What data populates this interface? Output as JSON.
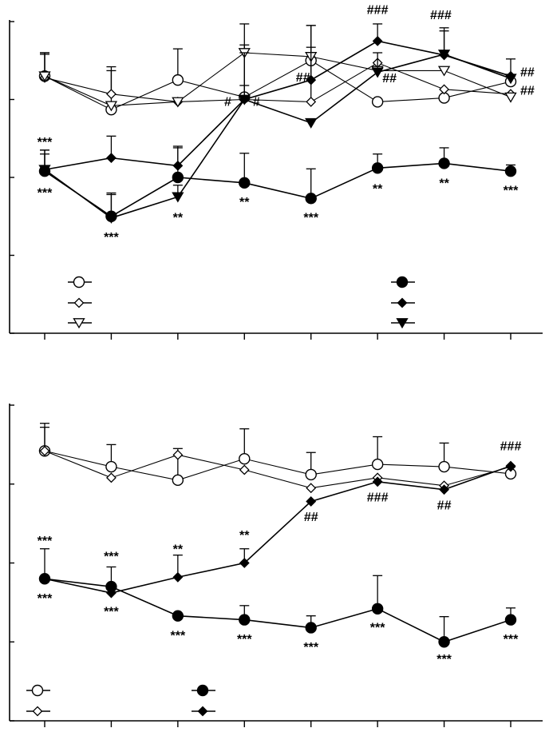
{
  "chart_data": [
    {
      "type": "line",
      "x": [
        1,
        2,
        3,
        4,
        5,
        6,
        7,
        8
      ],
      "ylim": [
        0,
        4
      ],
      "yticks": [
        0,
        1,
        2,
        3,
        4
      ],
      "title": "",
      "xlabel": "",
      "ylabel": "",
      "legend_placement": "bottom",
      "series": [
        {
          "marker": "circle-open",
          "values": [
            3.3,
            2.87,
            3.25,
            3.03,
            3.5,
            2.97,
            3.02,
            3.23
          ],
          "errors": [
            0.3,
            0.55,
            0.4,
            0.05,
            0.45,
            0.05,
            0.05,
            0.05
          ]
        },
        {
          "marker": "diamond-open",
          "values": [
            3.28,
            3.07,
            2.97,
            3.0,
            2.97,
            3.47,
            3.13,
            3.07
          ],
          "errors": [
            0.3,
            0.3,
            0.05,
            0.7,
            0.7,
            0.05,
            0.05,
            0.05
          ]
        },
        {
          "marker": "triangle-open",
          "values": [
            3.3,
            2.92,
            2.97,
            3.6,
            3.55,
            3.37,
            3.37,
            3.03
          ],
          "errors": [
            0.3,
            0.05,
            0.05,
            0.37,
            0.05,
            0.05,
            0.05,
            0.05
          ]
        },
        {
          "marker": "circle-filled",
          "values": [
            2.08,
            1.5,
            2.0,
            1.93,
            1.73,
            2.12,
            2.18,
            2.08
          ],
          "errors": [
            0.22,
            0.3,
            0.4,
            0.38,
            0.38,
            0.18,
            0.2,
            0.08
          ]
        },
        {
          "marker": "diamond-filled",
          "values": [
            2.1,
            2.25,
            2.15,
            3.0,
            3.25,
            3.75,
            3.57,
            3.3
          ],
          "errors": [
            0.25,
            0.28,
            0.23,
            0.18,
            0.7,
            0.22,
            0.35,
            0.22
          ]
        },
        {
          "marker": "triangle-filled",
          "values": [
            2.1,
            1.48,
            1.75,
            3.0,
            2.7,
            3.35,
            3.58,
            3.27
          ],
          "errors": [
            0.25,
            0.3,
            0.15,
            0.6,
            0.05,
            0.25,
            0.3,
            0.05
          ]
        }
      ],
      "annotations": [
        {
          "text": "***",
          "x": 1,
          "y": 2.4
        },
        {
          "text": "***",
          "x": 1,
          "y": 1.75
        },
        {
          "text": "***",
          "x": 2,
          "y": 1.18
        },
        {
          "text": "**",
          "x": 3,
          "y": 1.43
        },
        {
          "text": "**",
          "x": 4,
          "y": 1.63
        },
        {
          "text": "***",
          "x": 5,
          "y": 1.43
        },
        {
          "text": "**",
          "x": 6,
          "y": 1.8
        },
        {
          "text": "**",
          "x": 7,
          "y": 1.87
        },
        {
          "text": "***",
          "x": 8,
          "y": 1.78
        },
        {
          "text": "#",
          "x": 3.75,
          "y": 2.92
        },
        {
          "text": "#",
          "x": 4.18,
          "y": 2.92
        },
        {
          "text": "##",
          "x": 4.88,
          "y": 3.23
        },
        {
          "text": "###",
          "x": 6,
          "y": 4.1
        },
        {
          "text": "##",
          "x": 6.18,
          "y": 3.22
        },
        {
          "text": "###",
          "x": 6.95,
          "y": 4.03
        },
        {
          "text": "##",
          "x": 8.25,
          "y": 3.3
        },
        {
          "text": "##",
          "x": 8.25,
          "y": 3.06
        }
      ]
    },
    {
      "type": "line",
      "x": [
        1,
        2,
        3,
        4,
        5,
        6,
        7,
        8
      ],
      "ylim": [
        0,
        4
      ],
      "yticks": [
        0,
        1,
        2,
        3,
        4
      ],
      "title": "",
      "xlabel": "",
      "ylabel": "",
      "legend_placement": "bottom",
      "series": [
        {
          "marker": "circle-open",
          "values": [
            3.42,
            3.22,
            3.05,
            3.32,
            3.12,
            3.25,
            3.22,
            3.13
          ],
          "errors": [
            0.35,
            0.28,
            0.4,
            0.38,
            0.28,
            0.35,
            0.3,
            0.05
          ]
        },
        {
          "marker": "diamond-open",
          "values": [
            3.42,
            3.08,
            3.37,
            3.18,
            2.95,
            3.08,
            2.98,
            3.22
          ],
          "errors": [
            0.3,
            0.05,
            0.05,
            0.05,
            0.05,
            0.05,
            0.05,
            0.05
          ]
        },
        {
          "marker": "circle-filled",
          "values": [
            1.8,
            1.7,
            1.33,
            1.28,
            1.18,
            1.42,
            1.0,
            1.28
          ],
          "errors": [
            0.38,
            0.25,
            0.05,
            0.18,
            0.15,
            0.42,
            0.32,
            0.15
          ]
        },
        {
          "marker": "diamond-filled",
          "values": [
            1.8,
            1.62,
            1.82,
            2.0,
            2.78,
            3.03,
            2.93,
            3.23
          ],
          "errors": [
            0.05,
            0.05,
            0.28,
            0.18,
            0.05,
            0.05,
            0.05,
            0.05
          ]
        }
      ],
      "annotations": [
        {
          "text": "***",
          "x": 1,
          "y": 2.23
        },
        {
          "text": "***",
          "x": 1,
          "y": 1.5
        },
        {
          "text": "***",
          "x": 2,
          "y": 2.03
        },
        {
          "text": "***",
          "x": 2,
          "y": 1.33
        },
        {
          "text": "**",
          "x": 3,
          "y": 2.12
        },
        {
          "text": "***",
          "x": 3,
          "y": 1.03
        },
        {
          "text": "**",
          "x": 4,
          "y": 2.3
        },
        {
          "text": "***",
          "x": 4,
          "y": 0.98
        },
        {
          "text": "##",
          "x": 5,
          "y": 2.53
        },
        {
          "text": "***",
          "x": 5,
          "y": 0.88
        },
        {
          "text": "###",
          "x": 6,
          "y": 2.78
        },
        {
          "text": "***",
          "x": 6,
          "y": 1.13
        },
        {
          "text": "##",
          "x": 7,
          "y": 2.68
        },
        {
          "text": "***",
          "x": 7,
          "y": 0.73
        },
        {
          "text": "###",
          "x": 8,
          "y": 3.43
        },
        {
          "text": "***",
          "x": 8,
          "y": 0.98
        }
      ]
    }
  ]
}
